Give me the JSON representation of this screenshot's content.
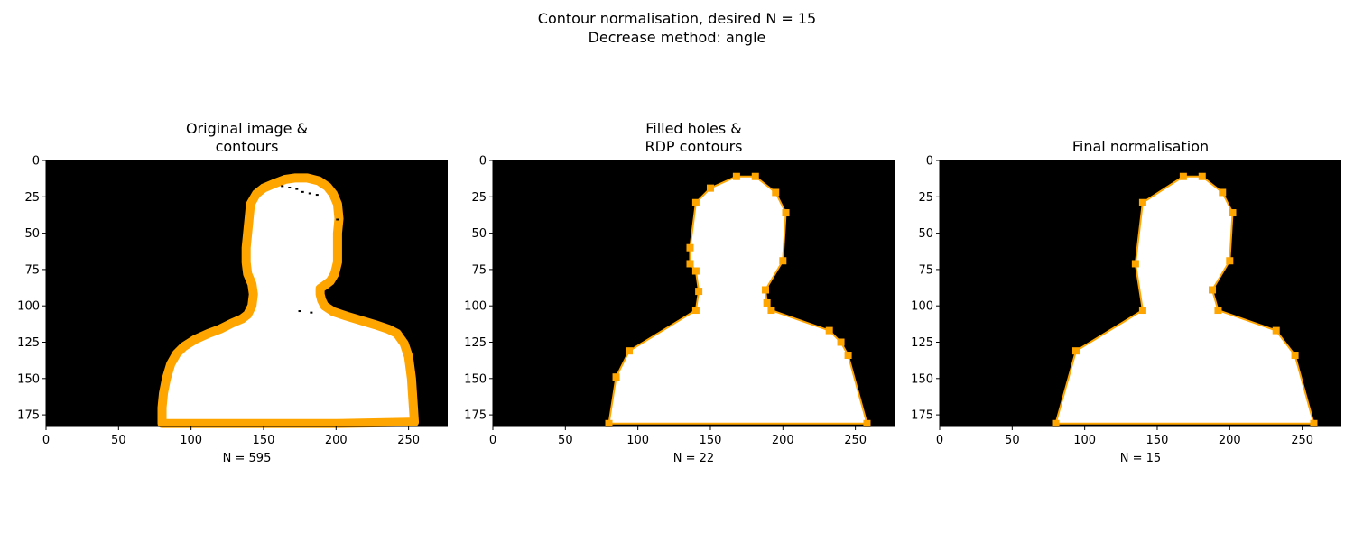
{
  "suptitle": [
    "Contour normalisation, desired N = 15",
    "Decrease method: angle"
  ],
  "colors": {
    "background": "#000000",
    "silhouette": "#ffffff",
    "contour": "#ffa500"
  },
  "chart_data": [
    {
      "type": "scatter",
      "title": [
        "Original image &",
        "contours"
      ],
      "xlabel": "N = 595",
      "xlim": [
        0,
        277
      ],
      "ylim": [
        183,
        0
      ],
      "y_inverted": true,
      "xticks": [
        0,
        50,
        100,
        150,
        200,
        250
      ],
      "yticks": [
        0,
        25,
        50,
        75,
        100,
        125,
        150,
        175
      ],
      "marker": "thick-contour",
      "n_points": 595,
      "points": [
        [
          80,
          180
        ],
        [
          80,
          170
        ],
        [
          81,
          160
        ],
        [
          83,
          150
        ],
        [
          86,
          140
        ],
        [
          90,
          133
        ],
        [
          95,
          128
        ],
        [
          103,
          123
        ],
        [
          112,
          119
        ],
        [
          120,
          116
        ],
        [
          128,
          112
        ],
        [
          135,
          109
        ],
        [
          139,
          106
        ],
        [
          142,
          100
        ],
        [
          143,
          92
        ],
        [
          142,
          85
        ],
        [
          139,
          78
        ],
        [
          138,
          70
        ],
        [
          138,
          60
        ],
        [
          139,
          50
        ],
        [
          140,
          40
        ],
        [
          141,
          30
        ],
        [
          145,
          23
        ],
        [
          150,
          19
        ],
        [
          157,
          16
        ],
        [
          165,
          13
        ],
        [
          172,
          12
        ],
        [
          180,
          12
        ],
        [
          188,
          14
        ],
        [
          194,
          18
        ],
        [
          198,
          23
        ],
        [
          201,
          30
        ],
        [
          202,
          40
        ],
        [
          201,
          50
        ],
        [
          201,
          60
        ],
        [
          201,
          70
        ],
        [
          199,
          78
        ],
        [
          196,
          83
        ],
        [
          192,
          86
        ],
        [
          189,
          88
        ],
        [
          189,
          92
        ],
        [
          190,
          96
        ],
        [
          192,
          100
        ],
        [
          198,
          104
        ],
        [
          207,
          107
        ],
        [
          217,
          110
        ],
        [
          227,
          113
        ],
        [
          236,
          116
        ],
        [
          242,
          119
        ],
        [
          247,
          126
        ],
        [
          250,
          135
        ],
        [
          252,
          150
        ],
        [
          253,
          165
        ],
        [
          254,
          180
        ],
        [
          200,
          181
        ],
        [
          160,
          181
        ],
        [
          120,
          181
        ],
        [
          80,
          181
        ]
      ]
    },
    {
      "type": "line",
      "title": [
        "Filled holes &",
        "RDP contours"
      ],
      "xlabel": "N = 22",
      "xlim": [
        0,
        277
      ],
      "ylim": [
        183,
        0
      ],
      "y_inverted": true,
      "xticks": [
        0,
        50,
        100,
        150,
        200,
        250
      ],
      "yticks": [
        0,
        25,
        50,
        75,
        100,
        125,
        150,
        175
      ],
      "marker": "square",
      "n_points": 22,
      "points": [
        [
          80,
          181
        ],
        [
          85,
          149
        ],
        [
          94,
          131
        ],
        [
          140,
          103
        ],
        [
          142,
          90
        ],
        [
          140,
          76
        ],
        [
          136,
          71
        ],
        [
          136,
          60
        ],
        [
          140,
          29
        ],
        [
          150,
          19
        ],
        [
          168,
          11
        ],
        [
          181,
          11
        ],
        [
          195,
          22
        ],
        [
          202,
          36
        ],
        [
          200,
          69
        ],
        [
          188,
          89
        ],
        [
          189,
          98
        ],
        [
          192,
          103
        ],
        [
          232,
          117
        ],
        [
          240,
          125
        ],
        [
          245,
          134
        ],
        [
          258,
          181
        ]
      ]
    },
    {
      "type": "line",
      "title": [
        "Final normalisation"
      ],
      "xlabel": "N = 15",
      "xlim": [
        0,
        277
      ],
      "ylim": [
        183,
        0
      ],
      "y_inverted": true,
      "xticks": [
        0,
        50,
        100,
        150,
        200,
        250
      ],
      "yticks": [
        0,
        25,
        50,
        75,
        100,
        125,
        150,
        175
      ],
      "marker": "square",
      "n_points": 15,
      "points": [
        [
          80,
          181
        ],
        [
          94,
          131
        ],
        [
          140,
          103
        ],
        [
          135,
          71
        ],
        [
          140,
          29
        ],
        [
          168,
          11
        ],
        [
          181,
          11
        ],
        [
          195,
          22
        ],
        [
          202,
          36
        ],
        [
          200,
          69
        ],
        [
          188,
          89
        ],
        [
          192,
          103
        ],
        [
          232,
          117
        ],
        [
          245,
          134
        ],
        [
          258,
          181
        ]
      ]
    }
  ]
}
